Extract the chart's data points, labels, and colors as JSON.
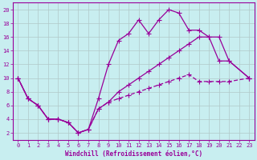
{
  "xlabel": "Windchill (Refroidissement éolien,°C)",
  "bg_color": "#c8eef0",
  "grid_color": "#b0c8c8",
  "line_color": "#990099",
  "xlim": [
    -0.5,
    23.5
  ],
  "ylim": [
    1,
    21
  ],
  "xticks": [
    0,
    1,
    2,
    3,
    4,
    5,
    6,
    7,
    8,
    9,
    10,
    11,
    12,
    13,
    14,
    15,
    16,
    17,
    18,
    19,
    20,
    21,
    22,
    23
  ],
  "yticks": [
    2,
    4,
    6,
    8,
    10,
    12,
    14,
    16,
    18,
    20
  ],
  "s1x": [
    0,
    1,
    2,
    3,
    4,
    5,
    6,
    7,
    8,
    9,
    10,
    11,
    12,
    13,
    14,
    15,
    16,
    17,
    18,
    19,
    20,
    21,
    23
  ],
  "s1y": [
    10,
    7,
    6,
    4,
    4,
    3.5,
    2,
    2.5,
    7,
    12,
    15.5,
    16.5,
    18.5,
    16.5,
    18.5,
    20,
    19.5,
    17,
    17,
    16,
    12.5,
    12.5,
    10
  ],
  "s2x": [
    0,
    1,
    2,
    3,
    4,
    5,
    6,
    7,
    8,
    9,
    10,
    11,
    12,
    13,
    14,
    15,
    16,
    17,
    18,
    19,
    20,
    21,
    23
  ],
  "s2y": [
    10,
    7,
    6,
    4,
    4,
    3.5,
    2,
    2.5,
    5.5,
    6.5,
    8,
    9,
    10,
    11,
    12,
    13,
    14,
    15,
    16,
    16,
    16,
    12.5,
    10
  ],
  "s3x": [
    0,
    1,
    2,
    3,
    4,
    5,
    6,
    7,
    8,
    9,
    10,
    11,
    12,
    13,
    14,
    15,
    16,
    17,
    18,
    19,
    20,
    21,
    23
  ],
  "s3y": [
    10,
    7,
    6,
    4,
    4,
    3.5,
    2,
    2.5,
    5.5,
    6.5,
    7,
    7.5,
    8,
    8.5,
    9,
    9.5,
    10,
    10.5,
    9.5,
    9.5,
    9.5,
    9.5,
    10
  ]
}
